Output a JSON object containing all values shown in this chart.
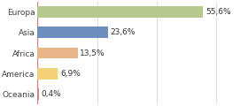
{
  "categories": [
    "Europa",
    "Asia",
    "Africa",
    "America",
    "Oceania"
  ],
  "values": [
    55.6,
    23.6,
    13.5,
    6.9,
    0.4
  ],
  "labels": [
    "55,6%",
    "23,6%",
    "13,5%",
    "6,9%",
    "0,4%"
  ],
  "bar_colors": [
    "#b5c98e",
    "#6e8ebf",
    "#e8b48a",
    "#f5d07a",
    "#e08080"
  ],
  "background_color": "#ffffff",
  "xlim": [
    0,
    70
  ],
  "label_fontsize": 6.5,
  "tick_fontsize": 6.5,
  "grid_color": "#dddddd",
  "bar_height": 0.55
}
